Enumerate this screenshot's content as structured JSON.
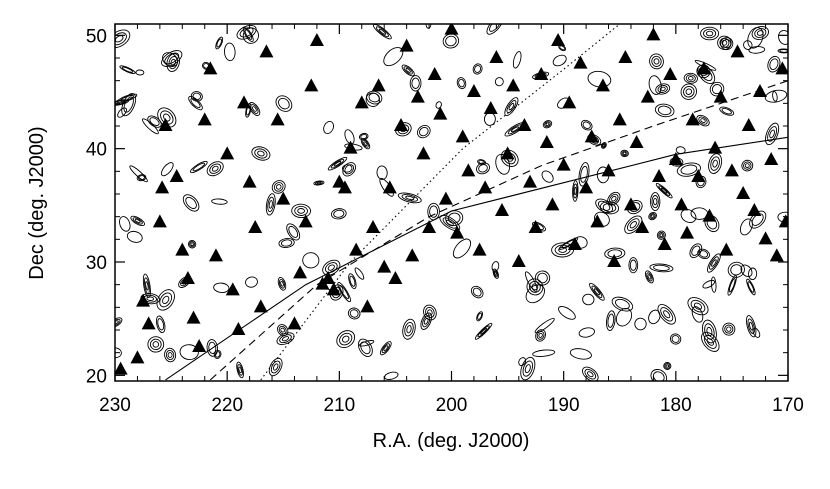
{
  "chart_data": {
    "type": "scatter",
    "title": "",
    "xlabel": "R.A. (deg. J2000)",
    "ylabel": "Dec (deg. J2000)",
    "xlim": [
      230,
      170
    ],
    "ylim": [
      19.5,
      51
    ],
    "x_reversed": true,
    "x_ticks": [
      230,
      220,
      210,
      200,
      190,
      180,
      170
    ],
    "y_ticks": [
      20,
      30,
      40,
      50
    ],
    "grid": false,
    "colors": {
      "foreground": "#000000",
      "background": "#ffffff"
    },
    "series": [
      {
        "marker": "filled-triangle",
        "points": [
          [
            229.5,
            20.5
          ],
          [
            228.0,
            21.5
          ],
          [
            227.5,
            26.5
          ],
          [
            227.0,
            24.5
          ],
          [
            226.0,
            33.5
          ],
          [
            225.8,
            36.5
          ],
          [
            225.5,
            42.0
          ],
          [
            224.5,
            37.5
          ],
          [
            224.0,
            31.0
          ],
          [
            223.5,
            28.5
          ],
          [
            223.0,
            25.0
          ],
          [
            222.5,
            22.5
          ],
          [
            222.0,
            42.5
          ],
          [
            221.5,
            47.0
          ],
          [
            221.0,
            30.5
          ],
          [
            220.0,
            39.5
          ],
          [
            219.5,
            27.5
          ],
          [
            219.0,
            24.0
          ],
          [
            218.5,
            44.0
          ],
          [
            218.0,
            37.0
          ],
          [
            217.5,
            33.0
          ],
          [
            217.0,
            26.0
          ],
          [
            216.5,
            48.5
          ],
          [
            215.5,
            42.5
          ],
          [
            215.0,
            35.5
          ],
          [
            214.0,
            24.5
          ],
          [
            213.5,
            29.0
          ],
          [
            213.0,
            33.5
          ],
          [
            212.5,
            45.5
          ],
          [
            212.0,
            49.5
          ],
          [
            211.5,
            28.0
          ],
          [
            211.0,
            28.5
          ],
          [
            210.5,
            27.5
          ],
          [
            210.0,
            37.0
          ],
          [
            209.5,
            36.5
          ],
          [
            209.0,
            40.0
          ],
          [
            208.5,
            31.0
          ],
          [
            208.0,
            44.0
          ],
          [
            207.5,
            26.0
          ],
          [
            207.0,
            33.0
          ],
          [
            206.5,
            45.5
          ],
          [
            206.0,
            29.5
          ],
          [
            205.5,
            36.5
          ],
          [
            205.0,
            28.5
          ],
          [
            204.5,
            42.0
          ],
          [
            204.0,
            49.0
          ],
          [
            203.5,
            30.5
          ],
          [
            203.0,
            44.5
          ],
          [
            202.5,
            39.5
          ],
          [
            202.0,
            33.0
          ],
          [
            201.5,
            46.5
          ],
          [
            201.0,
            43.0
          ],
          [
            200.5,
            35.5
          ],
          [
            200.0,
            50.5
          ],
          [
            199.5,
            32.5
          ],
          [
            199.0,
            41.0
          ],
          [
            198.5,
            38.0
          ],
          [
            198.0,
            45.0
          ],
          [
            197.5,
            31.0
          ],
          [
            197.0,
            36.5
          ],
          [
            196.5,
            43.5
          ],
          [
            196.0,
            48.0
          ],
          [
            195.5,
            34.5
          ],
          [
            195.0,
            39.5
          ],
          [
            194.5,
            45.5
          ],
          [
            194.0,
            30.0
          ],
          [
            193.5,
            42.0
          ],
          [
            193.0,
            37.0
          ],
          [
            192.5,
            33.0
          ],
          [
            192.0,
            46.5
          ],
          [
            191.5,
            40.5
          ],
          [
            191.0,
            35.0
          ],
          [
            190.5,
            49.5
          ],
          [
            190.0,
            38.5
          ],
          [
            189.5,
            44.0
          ],
          [
            189.0,
            31.5
          ],
          [
            188.5,
            47.5
          ],
          [
            188.0,
            36.5
          ],
          [
            187.5,
            41.0
          ],
          [
            187.0,
            33.5
          ],
          [
            186.5,
            45.5
          ],
          [
            186.0,
            38.0
          ],
          [
            185.5,
            30.0
          ],
          [
            185.0,
            42.5
          ],
          [
            184.5,
            48.0
          ],
          [
            184.0,
            35.0
          ],
          [
            183.5,
            40.5
          ],
          [
            183.0,
            33.0
          ],
          [
            182.5,
            44.5
          ],
          [
            182.0,
            50.0
          ],
          [
            181.5,
            37.5
          ],
          [
            181.0,
            31.5
          ],
          [
            180.5,
            46.5
          ],
          [
            180.0,
            39.0
          ],
          [
            179.5,
            35.0
          ],
          [
            179.0,
            32.5
          ],
          [
            178.5,
            42.5
          ],
          [
            178.0,
            37.5
          ],
          [
            177.5,
            47.0
          ],
          [
            177.0,
            34.0
          ],
          [
            176.5,
            40.0
          ],
          [
            176.0,
            44.5
          ],
          [
            175.5,
            31.0
          ],
          [
            175.0,
            38.0
          ],
          [
            174.5,
            48.5
          ],
          [
            174.0,
            36.0
          ],
          [
            173.5,
            42.0
          ],
          [
            173.0,
            34.5
          ],
          [
            172.5,
            45.0
          ],
          [
            172.0,
            32.0
          ],
          [
            171.5,
            39.0
          ],
          [
            171.0,
            30.5
          ],
          [
            170.5,
            47.0
          ],
          [
            170.2,
            33.5
          ]
        ]
      }
    ],
    "lines": [
      {
        "style": "solid",
        "points": [
          [
            225.5,
            19.6
          ],
          [
            213.0,
            28.0
          ],
          [
            200.0,
            34.5
          ],
          [
            190.0,
            37.0
          ],
          [
            180.0,
            39.5
          ],
          [
            170.0,
            41.0
          ]
        ]
      },
      {
        "style": "dashed",
        "points": [
          [
            221.5,
            19.6
          ],
          [
            212.0,
            28.0
          ],
          [
            202.0,
            34.0
          ],
          [
            192.0,
            38.5
          ],
          [
            182.0,
            42.0
          ],
          [
            170.0,
            46.0
          ]
        ]
      },
      {
        "style": "dotted",
        "points": [
          [
            217.0,
            19.6
          ],
          [
            209.0,
            30.0
          ],
          [
            199.0,
            40.0
          ],
          [
            190.0,
            47.0
          ],
          [
            185.0,
            51.0
          ]
        ]
      }
    ]
  }
}
